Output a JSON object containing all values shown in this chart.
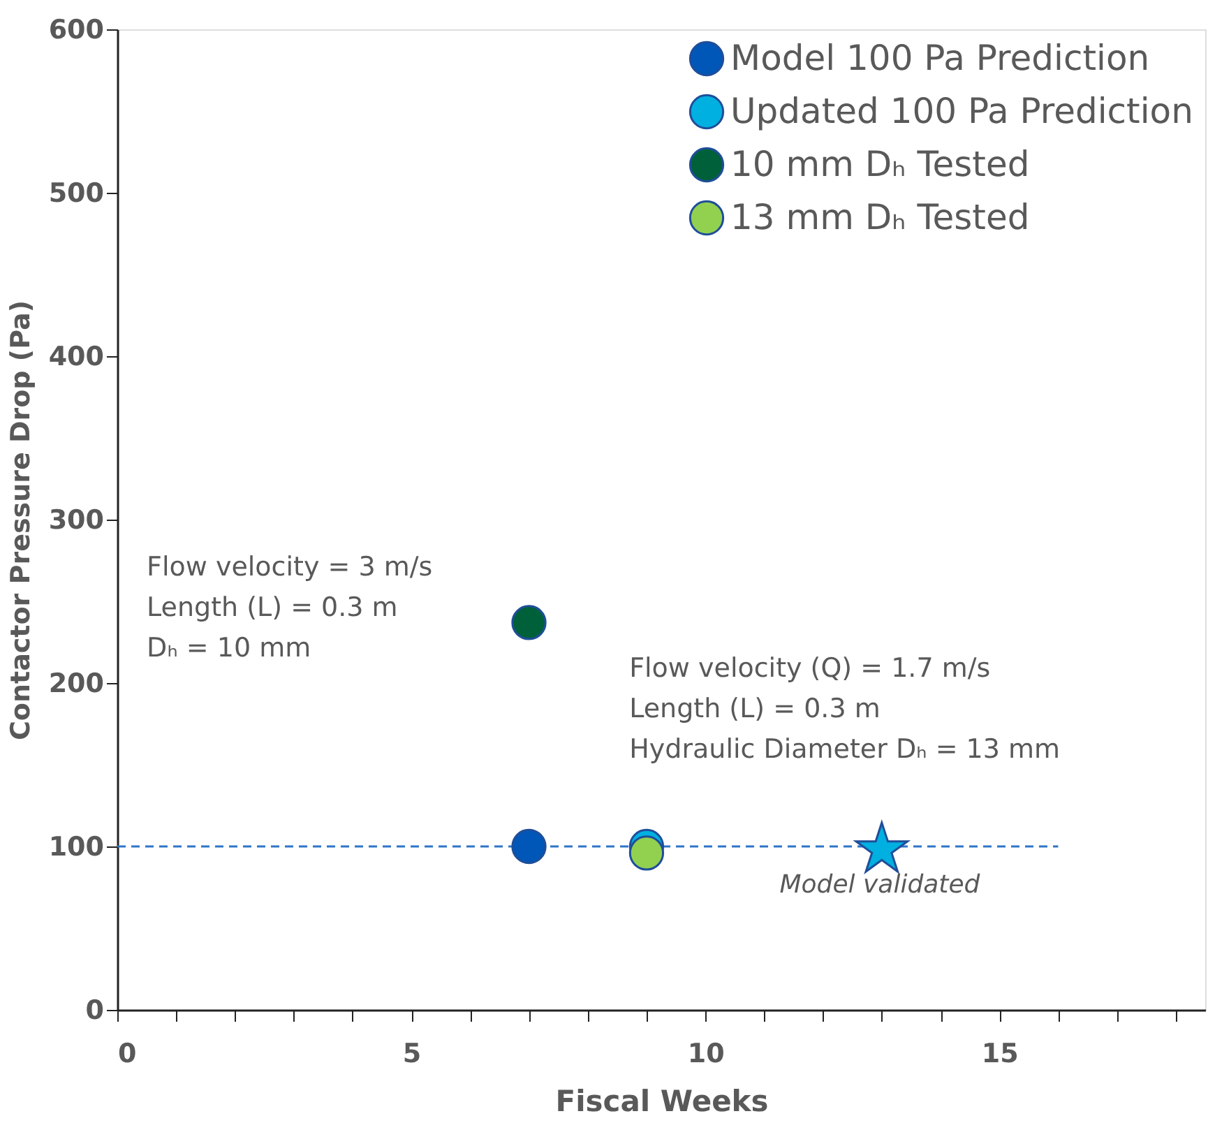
{
  "chart_data": {
    "type": "scatter",
    "xlabel": "Fiscal Weeks",
    "ylabel": "Contactor Pressure Drop (Pa)",
    "xlim": [
      0,
      18.5
    ],
    "xticks": [
      0,
      {
        "value": 1,
        "label": null
      },
      {
        "value": 2,
        "label": null
      },
      {
        "value": 3,
        "label": null
      },
      {
        "value": 4,
        "label": null
      },
      5,
      {
        "value": 6,
        "label": null
      },
      {
        "value": 7,
        "label": null
      },
      {
        "value": 8,
        "label": null
      },
      {
        "value": 9,
        "label": null
      },
      10,
      {
        "value": 11,
        "label": null
      },
      {
        "value": 12,
        "label": null
      },
      {
        "value": 13,
        "label": null
      },
      {
        "value": 14,
        "label": null
      },
      15,
      {
        "value": 16,
        "label": null
      },
      {
        "value": 17,
        "label": null
      },
      {
        "value": 18,
        "label": null
      }
    ],
    "ylim": [
      0,
      600
    ],
    "yticks": [
      0,
      100,
      200,
      300,
      400,
      500,
      600
    ],
    "grid": false,
    "legend": "top right",
    "marker": "circle",
    "series": [
      {
        "type": "line",
        "color": "#2e75c8",
        "line_style": "dashed",
        "marker": "none",
        "x": [
          0,
          16
        ],
        "values": [
          100,
          100
        ]
      },
      {
        "name": "Model 100 Pa Prediction",
        "color": "#0057b8",
        "x": [
          7
        ],
        "values": [
          100
        ]
      },
      {
        "name": "Updated 100 Pa Prediction",
        "color": "#00b0e0",
        "x": [
          9
        ],
        "values": [
          100
        ]
      },
      {
        "name": "10 mm Dₕ Tested",
        "color": "#00603a",
        "x": [
          7
        ],
        "values": [
          237
        ]
      },
      {
        "name": "13 mm Dₕ Tested",
        "color": "#92d050",
        "x": [
          9
        ],
        "values": [
          96
        ]
      },
      {
        "color": "#00b0e0",
        "marker": "star",
        "x": [
          13
        ],
        "values": [
          98
        ]
      }
    ],
    "annotations": [
      "Flow velocity = 3 m/s\nLength (L) = 0.3 m\nDₕ = 10 mm",
      "Flow velocity (Q) = 1.7 m/s\nLength (L) = 0.3 m\nHydraulic Diameter Dₕ = 13 mm",
      "Model validated"
    ]
  }
}
